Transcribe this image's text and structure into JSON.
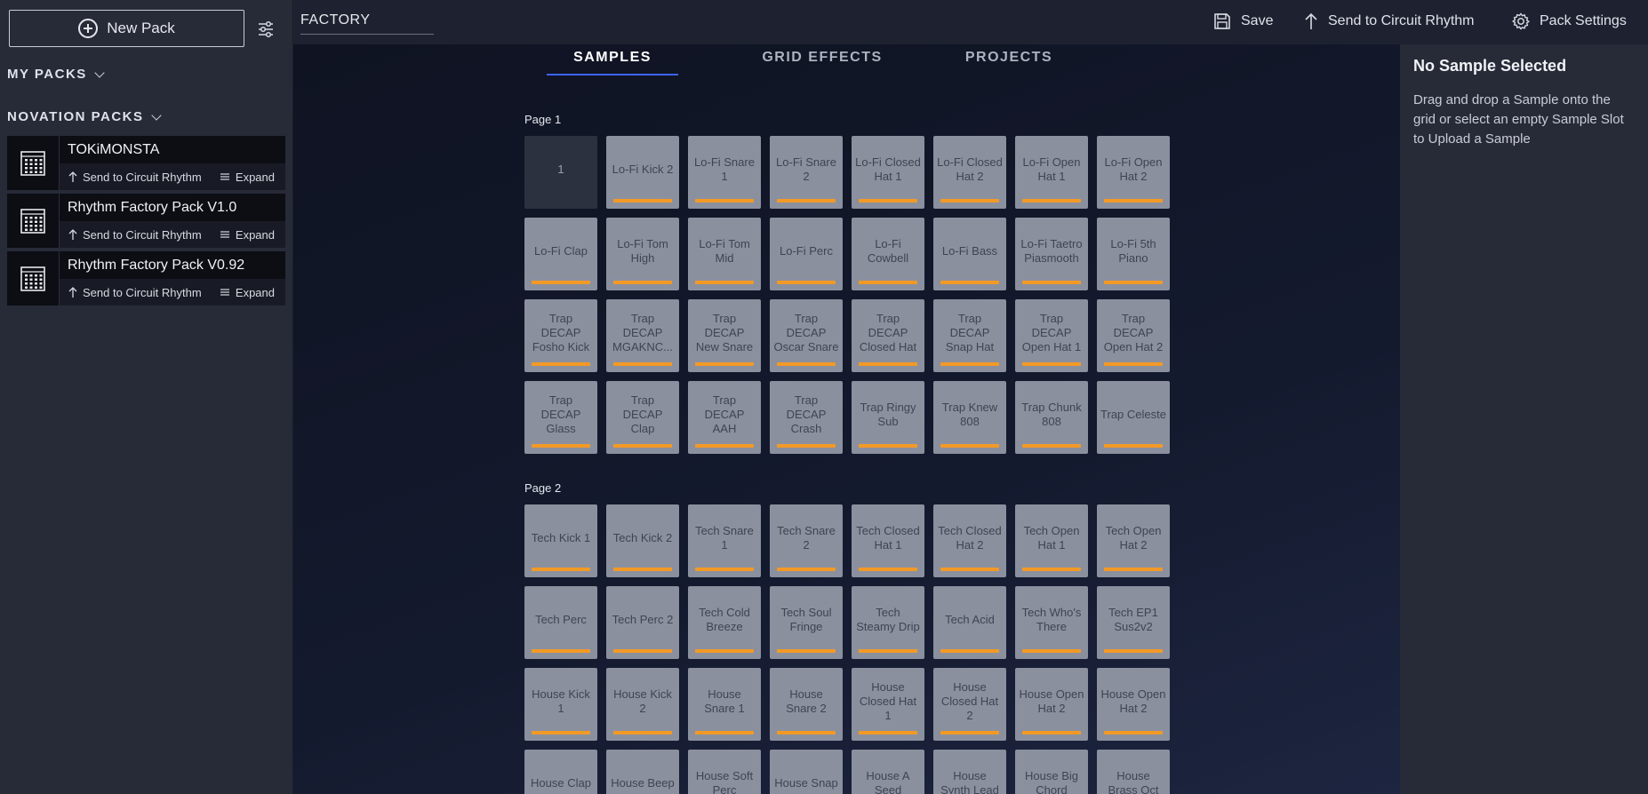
{
  "sidebar": {
    "new_pack_label": "New Pack",
    "my_packs_label": "MY PACKS",
    "novation_packs_label": "NOVATION PACKS",
    "packs": [
      {
        "name": "TOKiMONSTA",
        "send_label": "Send to Circuit Rhythm",
        "expand_label": "Expand"
      },
      {
        "name": "Rhythm Factory Pack V1.0",
        "send_label": "Send to Circuit Rhythm",
        "expand_label": "Expand"
      },
      {
        "name": "Rhythm Factory Pack V0.92",
        "send_label": "Send to Circuit Rhythm",
        "expand_label": "Expand"
      }
    ]
  },
  "topbar": {
    "pack_title": "FACTORY",
    "save_label": "Save",
    "send_label": "Send to Circuit Rhythm",
    "settings_label": "Pack Settings"
  },
  "tabs": [
    "SAMPLES",
    "GRID EFFECTS",
    "PROJECTS"
  ],
  "pages": [
    {
      "label": "Page 1",
      "pads": [
        "1",
        "Lo-Fi Kick 2",
        "Lo-Fi Snare 1",
        "Lo-Fi Snare 2",
        "Lo-Fi Closed Hat 1",
        "Lo-Fi Closed Hat 2",
        "Lo-Fi Open Hat 1",
        "Lo-Fi Open Hat 2",
        "Lo-Fi Clap",
        "Lo-Fi Tom High",
        "Lo-Fi Tom Mid",
        "Lo-Fi Perc",
        "Lo-Fi Cowbell",
        "Lo-Fi Bass",
        "Lo-Fi Taetro Piasmooth",
        "Lo-Fi 5th Piano",
        "Trap DECAP Fosho Kick",
        "Trap DECAP MGAKNC...",
        "Trap DECAP New Snare",
        "Trap DECAP Oscar Snare",
        "Trap DECAP Closed Hat",
        "Trap DECAP Snap Hat",
        "Trap DECAP Open Hat 1",
        "Trap DECAP Open Hat 2",
        "Trap DECAP Glass",
        "Trap DECAP Clap",
        "Trap DECAP AAH",
        "Trap DECAP Crash",
        "Trap Ringy Sub",
        "Trap Knew 808",
        "Trap Chunk 808",
        "Trap Celeste"
      ]
    },
    {
      "label": "Page 2",
      "pads": [
        "Tech Kick 1",
        "Tech Kick 2",
        "Tech Snare 1",
        "Tech Snare 2",
        "Tech Closed Hat 1",
        "Tech Closed Hat 2",
        "Tech Open Hat 1",
        "Tech Open Hat 2",
        "Tech Perc",
        "Tech Perc 2",
        "Tech Cold Breeze",
        "Tech Soul Fringe",
        "Tech Steamy Drip",
        "Tech Acid",
        "Tech Who's There",
        "Tech EP1 Sus2v2",
        "House Kick 1",
        "House Kick 2",
        "House Snare 1",
        "House Snare 2",
        "House Closed Hat 1",
        "House Closed Hat 2",
        "House Open Hat 2",
        "House Open Hat 2",
        "House Clap",
        "House Beep",
        "House Soft Perc",
        "House Snap",
        "House A Seed",
        "House Synth Lead",
        "House Big Chord",
        "House Brass Oct"
      ]
    }
  ],
  "right_panel": {
    "title": "No Sample Selected",
    "text": "Drag and drop a Sample onto the grid or select an empty Sample Slot to Upload a Sample"
  },
  "colors": {
    "accent_tab": "#3d63ff",
    "pad_bar": "#f39a25",
    "pad_bg": "#8b909f"
  }
}
